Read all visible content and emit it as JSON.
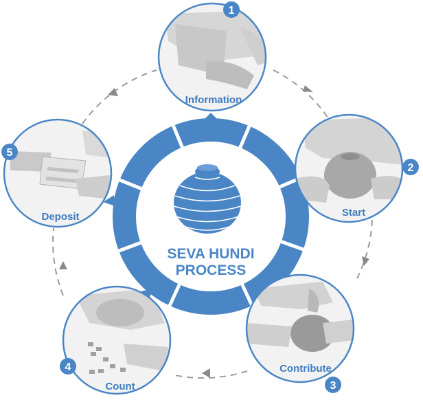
{
  "center": {
    "title_line1": "SEVA HUNDI",
    "title_line2": "PROCESS"
  },
  "steps": [
    {
      "number": "1",
      "label": "Information"
    },
    {
      "number": "2",
      "label": "Start"
    },
    {
      "number": "3",
      "label": "Contribute"
    },
    {
      "number": "4",
      "label": "Count"
    },
    {
      "number": "5",
      "label": "Deposit"
    }
  ],
  "colors": {
    "ring": "#4a86c5",
    "ring_dark": "#3b74b3",
    "label": "#3d7cc0",
    "circle_stroke": "#4a86c5",
    "photo_gray": "#d4d4d4",
    "dash": "#9a9a9a"
  },
  "icons": [
    "hundi-pot-icon",
    "arrow-head-icon"
  ]
}
